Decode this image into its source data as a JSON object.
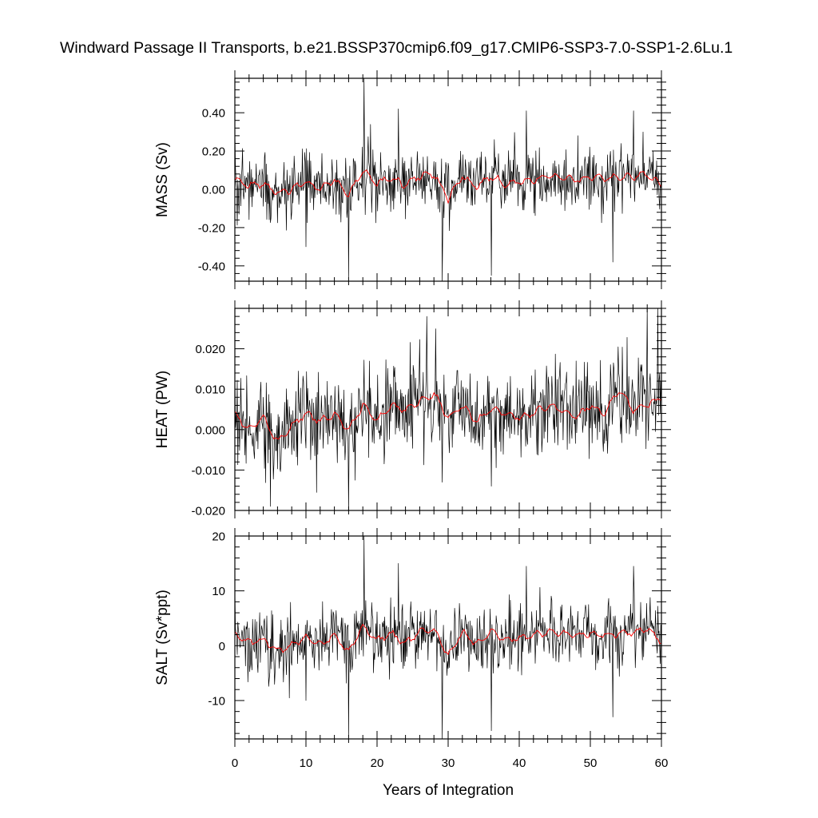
{
  "title": "Windward Passage II Transports, b.e21.BSSP370cmip6.f09_g17.CMIP6-SSP3-7.0-SSP1-2.6Lu.1",
  "colors": {
    "raw_series": "#000000",
    "smoothed_series": "#ff0000",
    "axes": "#000000",
    "background": "#ffffff"
  },
  "chart_data": [
    {
      "type": "line",
      "panel": "MASS",
      "ylabel": "MASS (Sv)",
      "xlabel": "",
      "xlim": [
        0,
        60
      ],
      "ylim": [
        -0.48,
        0.58
      ],
      "yticks": [
        0.4,
        0.2,
        0.0,
        -0.2,
        -0.4
      ],
      "ytick_labels": [
        "0.40",
        "0.20",
        "0.00",
        "-0.20",
        "-0.40"
      ],
      "grid": false,
      "series": [
        {
          "style": "monthly",
          "x_start": 0,
          "x_step": 0.08333,
          "mean": 0.03,
          "noise_std": 0.085,
          "extremes": [
            [
              0.0,
              0.31
            ],
            [
              10.0,
              -0.3
            ],
            [
              16.0,
              -0.46
            ],
            [
              18.2,
              0.58
            ],
            [
              23.0,
              0.42
            ],
            [
              29.2,
              -0.48
            ],
            [
              36.1,
              -0.45
            ],
            [
              41.0,
              0.41
            ],
            [
              53.2,
              -0.38
            ],
            [
              56.1,
              0.41
            ]
          ]
        },
        {
          "style": "smoothed",
          "x": [
            0,
            2,
            4,
            6,
            8,
            10,
            12,
            14,
            16,
            18,
            20,
            22,
            24,
            26,
            28,
            30,
            32,
            34,
            36,
            38,
            40,
            42,
            44,
            46,
            48,
            50,
            52,
            54,
            56,
            58,
            60
          ],
          "y": [
            0.05,
            0.02,
            0.03,
            -0.02,
            0.0,
            0.04,
            0.0,
            0.05,
            -0.03,
            0.1,
            0.03,
            0.06,
            0.02,
            0.07,
            0.08,
            -0.05,
            0.07,
            0.01,
            0.07,
            0.03,
            0.04,
            0.05,
            0.07,
            0.06,
            0.05,
            0.06,
            0.06,
            0.06,
            0.07,
            0.08,
            0.02
          ]
        }
      ]
    },
    {
      "type": "line",
      "panel": "HEAT",
      "ylabel": "HEAT (PW)",
      "xlabel": "",
      "xlim": [
        0,
        60
      ],
      "ylim": [
        -0.02,
        0.03
      ],
      "yticks": [
        0.02,
        0.01,
        0.0,
        -0.01,
        -0.02
      ],
      "ytick_labels": [
        "0.020",
        "0.010",
        "0.000",
        "-0.010",
        "-0.020"
      ],
      "grid": false,
      "series": [
        {
          "style": "monthly",
          "x_start": 0,
          "x_step": 0.08333,
          "mean": 0.0035,
          "noise_std": 0.0055,
          "extremes": [
            [
              0.0,
              0.015
            ],
            [
              5.0,
              -0.019
            ],
            [
              16.0,
              -0.02
            ],
            [
              27.0,
              0.028
            ],
            [
              29.2,
              -0.013
            ],
            [
              36.1,
              -0.014
            ],
            [
              58.0,
              0.03
            ],
            [
              59.5,
              0.03
            ]
          ]
        },
        {
          "style": "smoothed",
          "x": [
            0,
            2,
            4,
            6,
            8,
            10,
            12,
            14,
            16,
            18,
            20,
            22,
            24,
            26,
            28,
            30,
            32,
            34,
            36,
            38,
            40,
            42,
            44,
            46,
            48,
            50,
            52,
            54,
            56,
            58,
            60
          ],
          "y": [
            0.004,
            0.0,
            0.003,
            -0.003,
            0.001,
            0.004,
            0.002,
            0.004,
            0.0,
            0.006,
            0.002,
            0.006,
            0.005,
            0.007,
            0.009,
            0.003,
            0.006,
            0.002,
            0.005,
            0.004,
            0.003,
            0.004,
            0.006,
            0.005,
            0.003,
            0.006,
            0.004,
            0.01,
            0.005,
            0.006,
            0.008
          ]
        }
      ]
    },
    {
      "type": "line",
      "panel": "SALT",
      "ylabel": "SALT (Sv*ppt)",
      "xlabel": "Years of Integration",
      "xlim": [
        0,
        60
      ],
      "ylim": [
        -17,
        20
      ],
      "yticks": [
        20,
        10,
        0,
        -10
      ],
      "ytick_labels": [
        "20",
        "10",
        "0",
        "-10"
      ],
      "xticks": [
        0,
        10,
        20,
        30,
        40,
        50,
        60
      ],
      "xtick_labels": [
        "0",
        "10",
        "20",
        "30",
        "40",
        "50",
        "60"
      ],
      "grid": false,
      "series": [
        {
          "style": "monthly",
          "x_start": 0,
          "x_step": 0.08333,
          "mean": 1.1,
          "noise_std": 3.0,
          "extremes": [
            [
              0.0,
              10.5
            ],
            [
              10.0,
              -10.0
            ],
            [
              16.0,
              -16.5
            ],
            [
              18.2,
              20.0
            ],
            [
              23.0,
              15.0
            ],
            [
              29.2,
              -17.0
            ],
            [
              36.1,
              -15.5
            ],
            [
              41.0,
              14.5
            ],
            [
              53.2,
              -13.0
            ],
            [
              56.1,
              14.5
            ]
          ]
        },
        {
          "style": "smoothed",
          "x": [
            0,
            2,
            4,
            6,
            8,
            10,
            12,
            14,
            16,
            18,
            20,
            22,
            24,
            26,
            28,
            30,
            32,
            34,
            36,
            38,
            40,
            42,
            44,
            46,
            48,
            50,
            52,
            54,
            56,
            58,
            60
          ],
          "y": [
            2.0,
            0.5,
            1.0,
            -1.0,
            0.0,
            1.5,
            0.0,
            2.0,
            -1.2,
            3.5,
            1.0,
            2.2,
            0.5,
            2.5,
            3.0,
            -1.8,
            2.5,
            0.3,
            2.5,
            1.0,
            1.5,
            1.8,
            2.5,
            2.2,
            1.8,
            2.2,
            2.0,
            2.2,
            2.5,
            3.0,
            0.8
          ]
        }
      ]
    }
  ]
}
